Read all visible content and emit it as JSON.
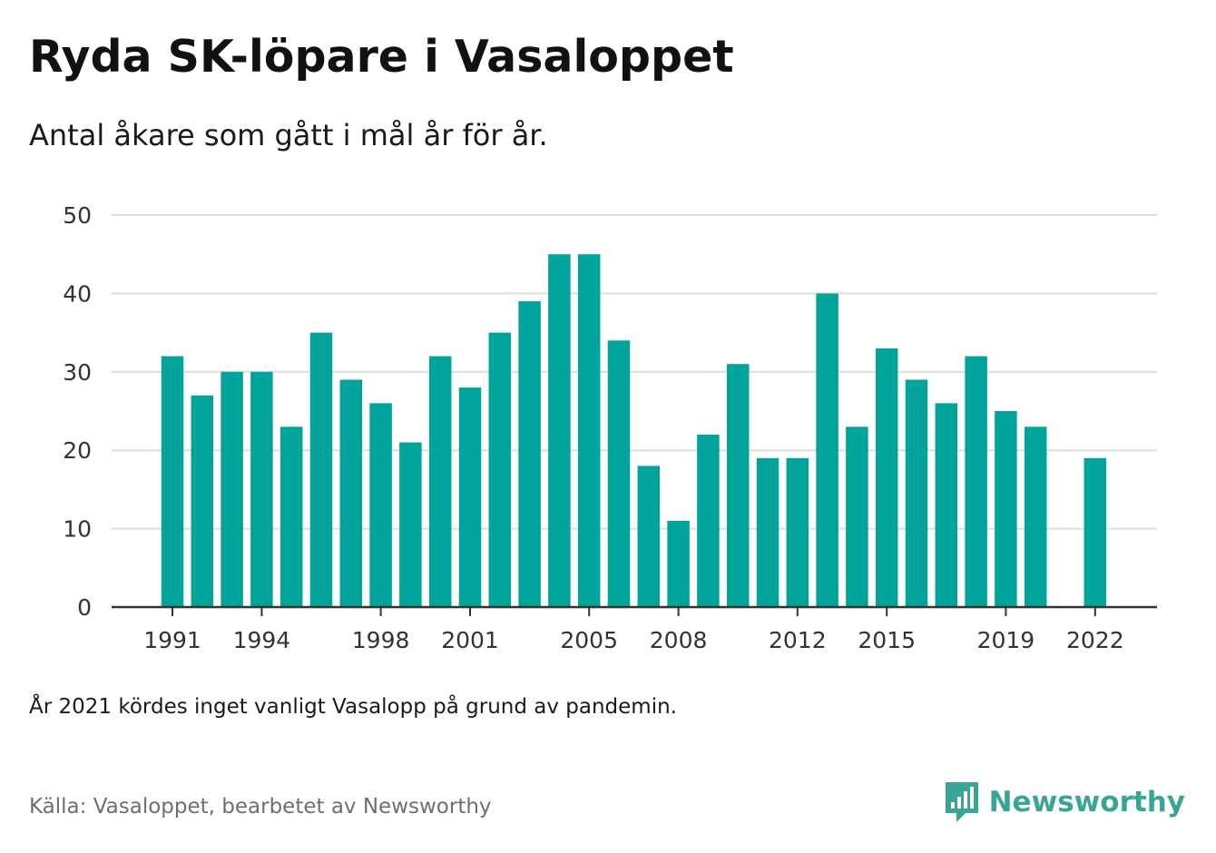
{
  "title": "Ryda SK-löpare i Vasaloppet",
  "subtitle": "Antal åkare som gått i mål år för år.",
  "note": "År 2021 kördes inget vanligt Vasalopp på grund av pandemin.",
  "source": "Källa: Vasaloppet, bearbetet av Newsworthy",
  "brand": {
    "name": "Newsworthy",
    "icon": "newsworthy-logo-icon",
    "color": "#3aa597"
  },
  "colors": {
    "bar": "#00a49a",
    "grid": "#dddddd",
    "axis": "#333333",
    "tick_text": "#333333"
  },
  "chart_data": {
    "type": "bar",
    "title": "Ryda SK-löpare i Vasaloppet",
    "subtitle": "Antal åkare som gått i mål år för år.",
    "xlabel": "",
    "ylabel": "",
    "ylim": [
      0,
      50
    ],
    "yticks": [
      0,
      10,
      20,
      30,
      40,
      50
    ],
    "xticks": [
      "1991",
      "1994",
      "1998",
      "2001",
      "2005",
      "2008",
      "2012",
      "2015",
      "2019",
      "2022"
    ],
    "grid": true,
    "categories": [
      "1991",
      "1992",
      "1993",
      "1994",
      "1995",
      "1996",
      "1997",
      "1998",
      "1999",
      "2000",
      "2001",
      "2002",
      "2003",
      "2004",
      "2005",
      "2006",
      "2007",
      "2008",
      "2009",
      "2010",
      "2011",
      "2012",
      "2013",
      "2014",
      "2015",
      "2016",
      "2017",
      "2018",
      "2019",
      "2020",
      "2021",
      "2022"
    ],
    "values": [
      32,
      27,
      30,
      30,
      23,
      35,
      29,
      26,
      21,
      32,
      28,
      35,
      39,
      45,
      45,
      34,
      18,
      11,
      22,
      31,
      19,
      19,
      40,
      23,
      33,
      29,
      26,
      32,
      25,
      23,
      null,
      19
    ]
  }
}
